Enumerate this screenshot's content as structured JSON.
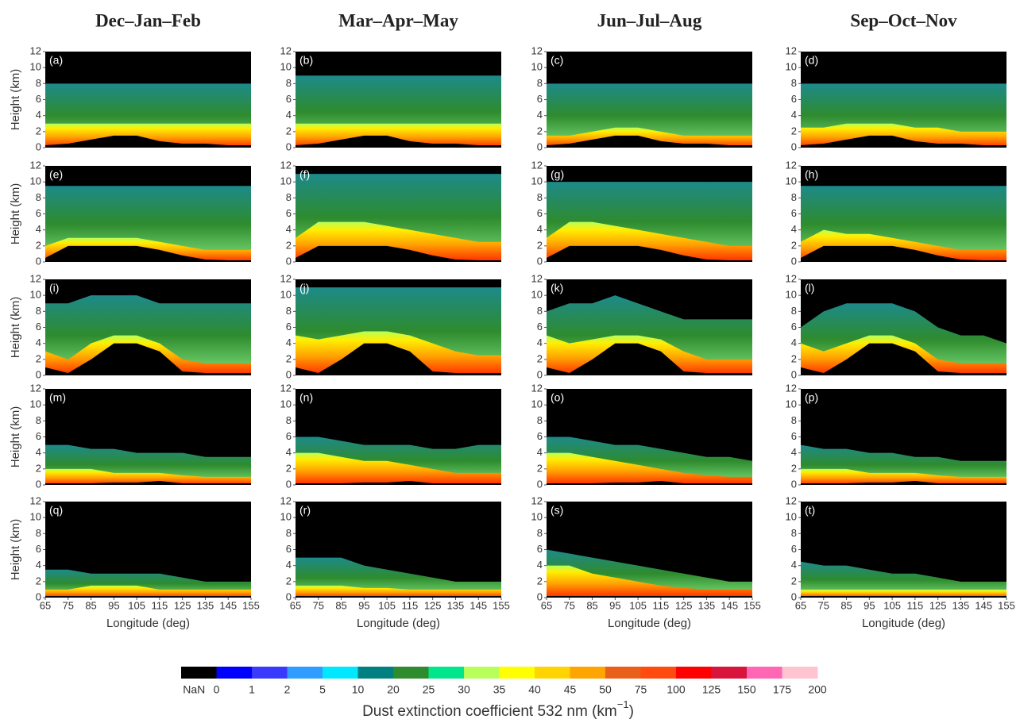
{
  "columns": [
    "Dec–Jan–Feb",
    "Mar–Apr–May",
    "Jun–Jul–Aug",
    "Sep–Oct–Nov"
  ],
  "axes": {
    "xlim": [
      65,
      155
    ],
    "ylim": [
      0,
      12
    ],
    "xticks": [
      65,
      75,
      85,
      95,
      105,
      115,
      125,
      135,
      145,
      155
    ],
    "yticks": [
      0,
      2,
      4,
      6,
      8,
      10,
      12
    ],
    "x": [
      65,
      75,
      85,
      95,
      105,
      115,
      125,
      135,
      145,
      155
    ],
    "xlabel": "Longitude (deg)",
    "ylabel": "Height (km)"
  },
  "chart_data": [
    {
      "type": "heatmap",
      "label": "(a)",
      "terrain": [
        0.3,
        0.5,
        1,
        1.5,
        1.5,
        0.8,
        0.5,
        0.5,
        0.3,
        0.3
      ],
      "high": [
        3,
        3,
        3,
        3,
        3,
        3,
        3,
        3,
        3,
        3
      ],
      "top": [
        8,
        8,
        8,
        8,
        8,
        8,
        8,
        8,
        8,
        8
      ]
    },
    {
      "type": "heatmap",
      "label": "(b)",
      "terrain": [
        0.3,
        0.5,
        1,
        1.5,
        1.5,
        0.8,
        0.5,
        0.5,
        0.3,
        0.3
      ],
      "high": [
        3,
        3,
        3,
        3,
        3,
        3,
        3,
        3,
        3,
        3
      ],
      "top": [
        9,
        9,
        9,
        9,
        9,
        9,
        9,
        9,
        9,
        9
      ]
    },
    {
      "type": "heatmap",
      "label": "(c)",
      "terrain": [
        0.3,
        0.5,
        1,
        1.5,
        1.5,
        0.8,
        0.5,
        0.5,
        0.3,
        0.3
      ],
      "high": [
        1.5,
        1.5,
        2,
        2.5,
        2.5,
        2,
        1.5,
        1.5,
        1.5,
        1.5
      ],
      "top": [
        8,
        8,
        8,
        8,
        8,
        8,
        8,
        8,
        8,
        8
      ]
    },
    {
      "type": "heatmap",
      "label": "(d)",
      "terrain": [
        0.3,
        0.5,
        1,
        1.5,
        1.5,
        0.8,
        0.5,
        0.5,
        0.3,
        0.3
      ],
      "high": [
        2.5,
        2.5,
        3,
        3,
        3,
        2.5,
        2.5,
        2,
        2,
        2
      ],
      "top": [
        8,
        8,
        8,
        8,
        8,
        8,
        8,
        8,
        8,
        8
      ]
    },
    {
      "type": "heatmap",
      "label": "(e)",
      "terrain": [
        0.5,
        2,
        2,
        2,
        2,
        1.5,
        0.8,
        0.3,
        0.2,
        0.2
      ],
      "high": [
        2,
        3,
        3,
        3,
        3,
        2.5,
        2,
        1.5,
        1.5,
        1.5
      ],
      "top": [
        9.5,
        9.5,
        9.5,
        9.5,
        9.5,
        9.5,
        9.5,
        9.5,
        9.5,
        9.5
      ]
    },
    {
      "type": "heatmap",
      "label": "(f)",
      "terrain": [
        0.5,
        2,
        2,
        2,
        2,
        1.5,
        0.8,
        0.3,
        0.2,
        0.2
      ],
      "high": [
        3,
        5,
        5,
        5,
        4.5,
        4,
        3.5,
        3,
        2.5,
        2.5
      ],
      "top": [
        11,
        11,
        11,
        11,
        11,
        11,
        11,
        11,
        11,
        11
      ]
    },
    {
      "type": "heatmap",
      "label": "(g)",
      "terrain": [
        0.5,
        2,
        2,
        2,
        2,
        1.5,
        0.8,
        0.3,
        0.2,
        0.2
      ],
      "high": [
        3,
        5,
        5,
        4.5,
        4,
        3.5,
        3,
        2.5,
        2,
        2
      ],
      "top": [
        10,
        10,
        10,
        10,
        10,
        10,
        10,
        10,
        10,
        10
      ]
    },
    {
      "type": "heatmap",
      "label": "(h)",
      "terrain": [
        0.5,
        2,
        2,
        2,
        2,
        1.5,
        0.8,
        0.3,
        0.2,
        0.2
      ],
      "high": [
        2.5,
        4,
        3.5,
        3.5,
        3,
        2.5,
        2,
        1.5,
        1.5,
        1.5
      ],
      "top": [
        9.5,
        9.5,
        9.5,
        9.5,
        9.5,
        9.5,
        9.5,
        9.5,
        9.5,
        9.5
      ]
    },
    {
      "type": "heatmap",
      "label": "(i)",
      "terrain": [
        1,
        0.3,
        2,
        4,
        4,
        3,
        0.5,
        0.3,
        0.3,
        0.3
      ],
      "high": [
        3,
        2,
        4,
        5,
        5,
        4,
        2,
        1.5,
        1.5,
        1.5
      ],
      "top": [
        9,
        9,
        10,
        10,
        10,
        9,
        9,
        9,
        9,
        9
      ]
    },
    {
      "type": "heatmap",
      "label": "(j)",
      "terrain": [
        1,
        0.3,
        2,
        4,
        4,
        3,
        0.5,
        0.3,
        0.3,
        0.3
      ],
      "high": [
        5,
        4.5,
        5,
        5.5,
        5.5,
        5,
        4,
        3,
        2.5,
        2.5
      ],
      "top": [
        11,
        11,
        11,
        11,
        11,
        11,
        11,
        11,
        11,
        11
      ]
    },
    {
      "type": "heatmap",
      "label": "(k)",
      "terrain": [
        1,
        0.3,
        2,
        4,
        4,
        3,
        0.5,
        0.3,
        0.3,
        0.3
      ],
      "high": [
        5,
        4,
        4.5,
        5,
        5,
        4.5,
        3,
        2,
        2,
        2
      ],
      "top": [
        8,
        9,
        9,
        10,
        9,
        8,
        7,
        7,
        7,
        7
      ]
    },
    {
      "type": "heatmap",
      "label": "(l)",
      "terrain": [
        1,
        0.3,
        2,
        4,
        4,
        3,
        0.5,
        0.3,
        0.3,
        0.3
      ],
      "high": [
        4,
        3,
        4,
        5,
        5,
        4,
        2,
        1.5,
        1.5,
        1.5
      ],
      "top": [
        6,
        8,
        9,
        9,
        9,
        8,
        6,
        5,
        5,
        4
      ]
    },
    {
      "type": "heatmap",
      "label": "(m)",
      "terrain": [
        0.2,
        0.2,
        0.2,
        0.3,
        0.3,
        0.5,
        0.2,
        0.2,
        0.2,
        0.2
      ],
      "high": [
        2,
        2,
        2,
        1.5,
        1.5,
        1.5,
        1.2,
        1,
        1,
        1
      ],
      "top": [
        5,
        5,
        4.5,
        4.5,
        4,
        4,
        4,
        3.5,
        3.5,
        3.5
      ]
    },
    {
      "type": "heatmap",
      "label": "(n)",
      "terrain": [
        0.2,
        0.2,
        0.2,
        0.3,
        0.3,
        0.5,
        0.2,
        0.2,
        0.2,
        0.2
      ],
      "high": [
        4,
        4,
        3.5,
        3,
        3,
        2.5,
        2,
        1.5,
        1.5,
        1.5
      ],
      "top": [
        6,
        6,
        5.5,
        5,
        5,
        5,
        4.5,
        4.5,
        5,
        5
      ]
    },
    {
      "type": "heatmap",
      "label": "(o)",
      "terrain": [
        0.2,
        0.2,
        0.2,
        0.3,
        0.3,
        0.5,
        0.2,
        0.2,
        0.2,
        0.2
      ],
      "high": [
        4,
        4,
        3.5,
        3,
        2.5,
        2,
        1.5,
        1.2,
        1,
        1
      ],
      "top": [
        6,
        6,
        5.5,
        5,
        5,
        4.5,
        4,
        3.5,
        3.5,
        3
      ]
    },
    {
      "type": "heatmap",
      "label": "(p)",
      "terrain": [
        0.2,
        0.2,
        0.2,
        0.3,
        0.3,
        0.5,
        0.2,
        0.2,
        0.2,
        0.2
      ],
      "high": [
        2,
        2,
        2,
        1.5,
        1.5,
        1.5,
        1.2,
        1,
        1,
        1
      ],
      "top": [
        5,
        4.5,
        4.5,
        4,
        4,
        3.5,
        3.5,
        3,
        3,
        3
      ]
    },
    {
      "type": "heatmap",
      "label": "(q)",
      "terrain": [
        0.2,
        0.2,
        0.2,
        0.2,
        0.2,
        0.2,
        0.2,
        0.2,
        0.2,
        0.2
      ],
      "high": [
        1,
        1,
        1.5,
        1.5,
        1.5,
        1,
        1,
        1,
        1,
        1
      ],
      "top": [
        3.5,
        3.5,
        3,
        3,
        3,
        3,
        2.5,
        2,
        2,
        2
      ]
    },
    {
      "type": "heatmap",
      "label": "(r)",
      "terrain": [
        0.2,
        0.2,
        0.2,
        0.2,
        0.2,
        0.2,
        0.2,
        0.2,
        0.2,
        0.2
      ],
      "high": [
        1.5,
        1.5,
        1.5,
        1.2,
        1.2,
        1,
        1,
        1,
        1,
        1
      ],
      "top": [
        5,
        5,
        5,
        4,
        3.5,
        3,
        2.5,
        2,
        2,
        2
      ]
    },
    {
      "type": "heatmap",
      "label": "(s)",
      "terrain": [
        0.2,
        0.2,
        0.2,
        0.2,
        0.2,
        0.2,
        0.2,
        0.2,
        0.2,
        0.2
      ],
      "high": [
        4,
        4,
        3,
        2.5,
        2,
        1.5,
        1.2,
        1,
        1,
        1
      ],
      "top": [
        6,
        5.5,
        5,
        4.5,
        4,
        3.5,
        3,
        2.5,
        2,
        2
      ]
    },
    {
      "type": "heatmap",
      "label": "(t)",
      "terrain": [
        0.2,
        0.2,
        0.2,
        0.2,
        0.2,
        0.2,
        0.2,
        0.2,
        0.2,
        0.2
      ],
      "high": [
        1,
        1,
        1,
        1,
        1,
        1,
        1,
        1,
        1,
        1
      ],
      "top": [
        4.5,
        4,
        4,
        3.5,
        3,
        3,
        2.5,
        2,
        2,
        2
      ]
    }
  ],
  "colorbar": {
    "title": "Dust extinction coefficient 532 nm (km",
    "title_sup": "−1",
    "title_end": ")",
    "nan_label": "NaN",
    "ticks": [
      0,
      1,
      2,
      5,
      10,
      20,
      25,
      30,
      35,
      40,
      45,
      50,
      75,
      100,
      125,
      150,
      175,
      200
    ],
    "colors": [
      "#000000",
      "#0000ff",
      "#3a3aff",
      "#2f9dff",
      "#00e8ff",
      "#008080",
      "#2e8b2e",
      "#00e68a",
      "#b8ff5c",
      "#ffff00",
      "#ffd400",
      "#ffa500",
      "#e8601a",
      "#ff4a10",
      "#ff0000",
      "#d8143c",
      "#ff66b3",
      "#ffc4d0"
    ]
  }
}
